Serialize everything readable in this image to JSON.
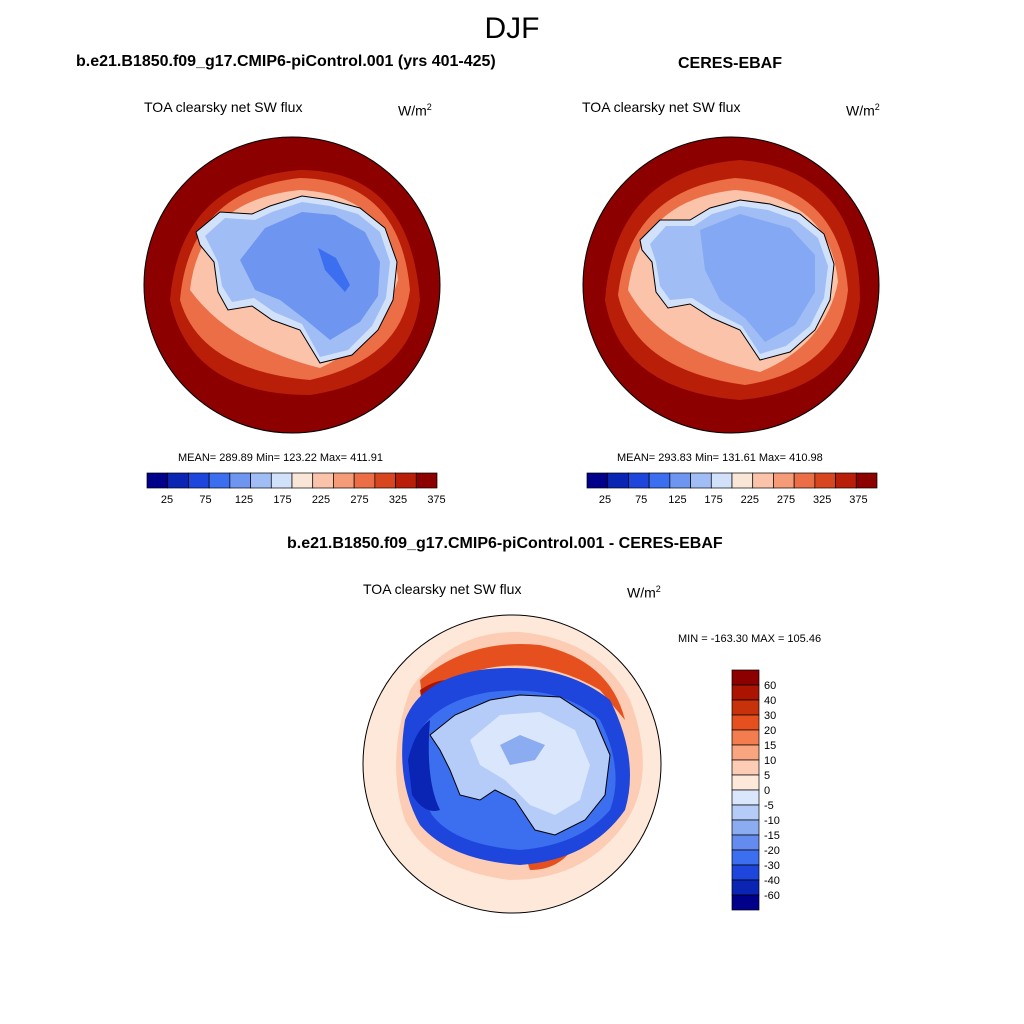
{
  "season": "DJF",
  "colors": {
    "abs_levels": [
      "#00008b",
      "#0a24b4",
      "#1e46dc",
      "#3c6ef0",
      "#6e96f0",
      "#a0bef5",
      "#d2e1fa",
      "#fae6d7",
      "#fac3aa",
      "#f59b78",
      "#eb6e46",
      "#d7461e",
      "#b91e08",
      "#8c0000"
    ],
    "diff_levels": [
      "#00008b",
      "#0a24b4",
      "#1e46dc",
      "#3c6ef0",
      "#648cf0",
      "#8cacf2",
      "#b4ccf7",
      "#dae6fb",
      "#fde8da",
      "#fccdb4",
      "#f9a57f",
      "#f47d50",
      "#e6501e",
      "#c8320a",
      "#aa1400",
      "#8c0000"
    ]
  },
  "panels": [
    {
      "title": "b.e21.B1850.f09_g17.CMIP6-piControl.001 (yrs 401-425)",
      "var_name": "TOA clearsky net SW flux",
      "units_base": "W/m",
      "units_exp": "2",
      "stats": "MEAN= 289.89  Min= 123.22  Max= 411.91"
    },
    {
      "title": "CERES-EBAF",
      "var_name": "TOA clearsky net SW flux",
      "units_base": "W/m",
      "units_exp": "2",
      "stats": "MEAN= 293.83  Min= 131.61  Max= 410.98"
    },
    {
      "title": "b.e21.B1850.f09_g17.CMIP6-piControl.001 - CERES-EBAF",
      "var_name": "TOA clearsky net SW flux",
      "units_base": "W/m",
      "units_exp": "2",
      "stats": "MIN = -163.30 MAX = 105.46"
    }
  ],
  "chart_data": [
    {
      "type": "heatmap",
      "title": "b.e21.B1850.f09_g17.CMIP6-piControl.001 (yrs 401-425)",
      "projection": "south-polar-stereographic",
      "variable": "TOA clearsky net SW flux",
      "units": "W/m2",
      "stats": {
        "mean": 289.89,
        "min": 123.22,
        "max": 411.91
      },
      "colorbar": {
        "orientation": "horizontal",
        "levels": [
          25,
          50,
          75,
          100,
          125,
          150,
          175,
          200,
          225,
          250,
          275,
          300,
          325,
          350,
          375
        ],
        "tick_labels": [
          "25",
          "75",
          "125",
          "175",
          "225",
          "275",
          "325",
          "375"
        ]
      }
    },
    {
      "type": "heatmap",
      "title": "CERES-EBAF",
      "projection": "south-polar-stereographic",
      "variable": "TOA clearsky net SW flux",
      "units": "W/m2",
      "stats": {
        "mean": 293.83,
        "min": 131.61,
        "max": 410.98
      },
      "colorbar": {
        "orientation": "horizontal",
        "levels": [
          25,
          50,
          75,
          100,
          125,
          150,
          175,
          200,
          225,
          250,
          275,
          300,
          325,
          350,
          375
        ],
        "tick_labels": [
          "25",
          "75",
          "125",
          "175",
          "225",
          "275",
          "325",
          "375"
        ]
      }
    },
    {
      "type": "heatmap",
      "title": "b.e21.B1850.f09_g17.CMIP6-piControl.001 - CERES-EBAF",
      "projection": "south-polar-stereographic",
      "variable": "TOA clearsky net SW flux",
      "units": "W/m2",
      "stats": {
        "min": -163.3,
        "max": 105.46
      },
      "colorbar": {
        "orientation": "vertical",
        "tick_labels": [
          "60",
          "40",
          "30",
          "20",
          "15",
          "10",
          "5",
          "0",
          "-5",
          "-10",
          "-15",
          "-20",
          "-30",
          "-40",
          "-60"
        ]
      }
    }
  ]
}
